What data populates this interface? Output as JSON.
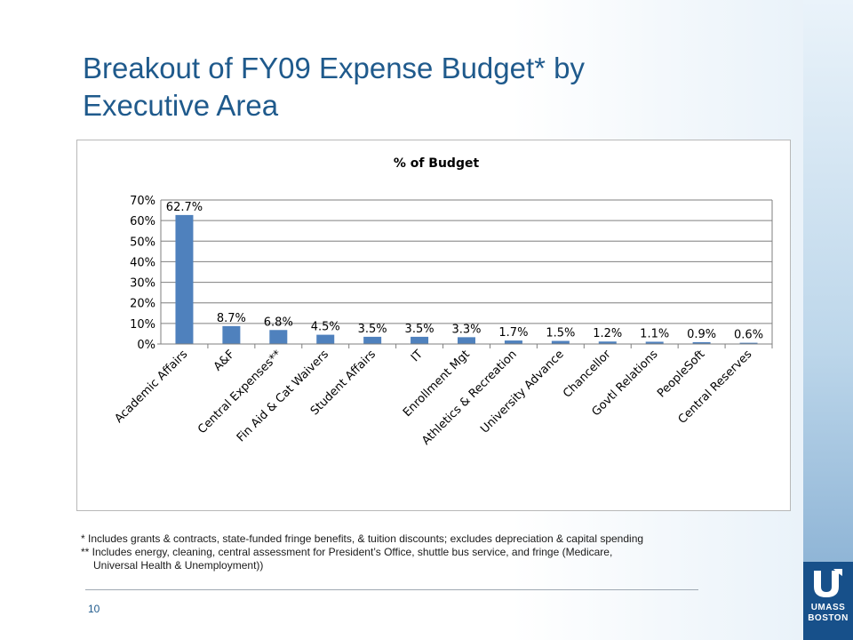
{
  "slide": {
    "title_line1": "Breakout of FY09 Expense Budget* by",
    "title_line2": "Executive Area",
    "footnote1": "*   Includes grants & contracts, state-funded fringe benefits, & tuition discounts; excludes depreciation & capital spending",
    "footnote2": "** Includes energy, cleaning, central assessment for President’s Office, shuttle bus service, and fringe (Medicare,",
    "footnote3": "Universal  Health & Unemployment))",
    "page_number": "10",
    "logo_line1": "UMASS",
    "logo_line2": "BOSTON"
  },
  "chart_data": {
    "type": "bar",
    "title": "% of Budget",
    "xlabel": "",
    "ylabel": "",
    "ylim": [
      0,
      70
    ],
    "yticks": [
      "0%",
      "10%",
      "20%",
      "30%",
      "40%",
      "50%",
      "60%",
      "70%"
    ],
    "grid": true,
    "legend": "none",
    "bar_color": "#4f81bd",
    "categories": [
      "Academic Affairs",
      "A&F",
      "Central Expenses**",
      "Fin Aid & Cat Waivers",
      "Student Affairs",
      "IT",
      "Enrollment Mgt",
      "Athletics & Recreation",
      "University Advance",
      "Chancellor",
      "Govtl Relations",
      "PeopleSoft",
      "Central Reserves"
    ],
    "values": [
      62.7,
      8.7,
      6.8,
      4.5,
      3.5,
      3.5,
      3.3,
      1.7,
      1.5,
      1.2,
      1.1,
      0.9,
      0.6
    ],
    "data_labels": [
      "62.7%",
      "8.7%",
      "6.8%",
      "4.5%",
      "3.5%",
      "3.5%",
      "3.3%",
      "1.7%",
      "1.5%",
      "1.2%",
      "1.1%",
      "0.9%",
      "0.6%"
    ]
  },
  "colors": {
    "title": "#1f5a8c",
    "bar": "#4f81bd",
    "logo_block": "#17508a"
  }
}
